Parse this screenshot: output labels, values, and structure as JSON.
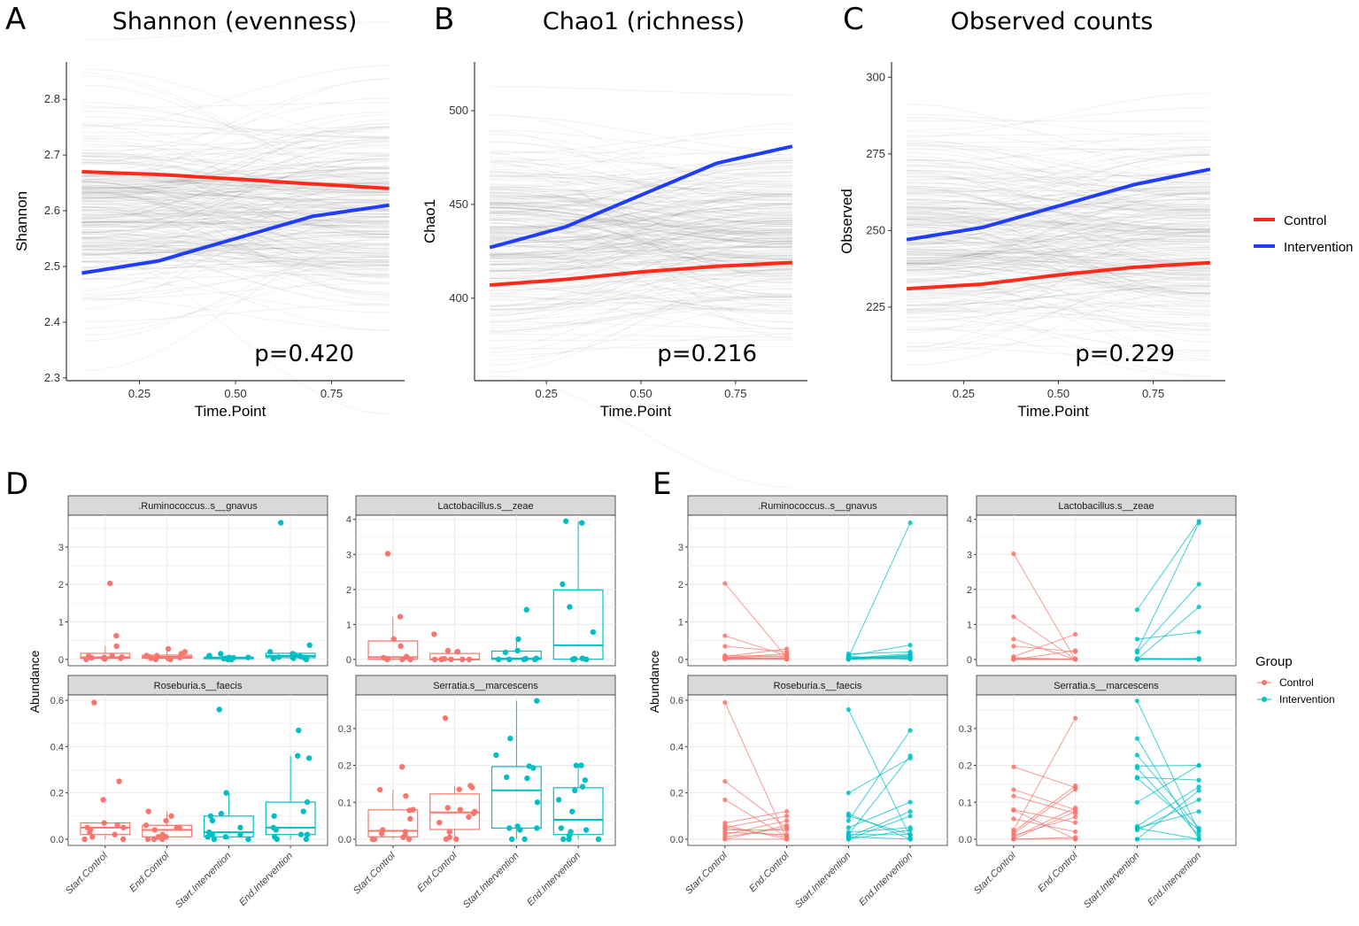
{
  "colors": {
    "control_line": "#ff2a1a",
    "intervention_line": "#1f3cff",
    "control_point": "#f8766d",
    "intervention_point": "#00bfc4",
    "strip": "#d9d9d9",
    "grid": "#ebebeb"
  },
  "legend_top": {
    "items": [
      {
        "label": "Control",
        "color": "#ff2a1a"
      },
      {
        "label": "Intervention",
        "color": "#1f3cff"
      }
    ]
  },
  "legend_bottom": {
    "title": "Group",
    "items": [
      {
        "label": "Control",
        "color": "#f8766d"
      },
      {
        "label": "Intervention",
        "color": "#00bfc4"
      }
    ]
  },
  "chart_data": [
    {
      "panel": "A",
      "type": "line",
      "title": "Shannon (evenness)",
      "xlabel": "Time.Point",
      "ylabel": "Shannon",
      "annotation": "p=0.420",
      "xlim": [
        0.06,
        0.94
      ],
      "ylim": [
        2.295,
        2.867
      ],
      "xticks": [
        "0.25",
        "0.50",
        "0.75"
      ],
      "yticks": [
        "2.3",
        "2.4",
        "2.5",
        "2.6",
        "2.7",
        "2.8"
      ],
      "x": [
        0.1,
        0.3,
        0.5,
        0.7,
        0.9
      ],
      "series": [
        {
          "name": "Control",
          "values": [
            2.67,
            2.665,
            2.657,
            2.648,
            2.64
          ]
        },
        {
          "name": "Intervention",
          "values": [
            2.488,
            2.51,
            2.55,
            2.59,
            2.61
          ]
        }
      ],
      "background": "permutation curves (gray)"
    },
    {
      "panel": "B",
      "type": "line",
      "title": "Chao1 (richness)",
      "xlabel": "Time.Point",
      "ylabel": "Chao1",
      "annotation": "p=0.216",
      "xlim": [
        0.06,
        0.94
      ],
      "ylim": [
        356,
        526
      ],
      "xticks": [
        "0.25",
        "0.50",
        "0.75"
      ],
      "yticks": [
        "400",
        "450",
        "500"
      ],
      "x": [
        0.1,
        0.3,
        0.5,
        0.7,
        0.9
      ],
      "series": [
        {
          "name": "Control",
          "values": [
            407,
            410,
            414,
            417,
            419
          ]
        },
        {
          "name": "Intervention",
          "values": [
            427,
            438,
            455,
            472,
            481
          ]
        }
      ],
      "background": "permutation curves (gray)"
    },
    {
      "panel": "C",
      "type": "line",
      "title": "Observed counts",
      "xlabel": "Time.Point",
      "ylabel": "Observed",
      "annotation": "p=0.229",
      "xlim": [
        0.06,
        0.94
      ],
      "ylim": [
        201,
        305
      ],
      "xticks": [
        "0.25",
        "0.50",
        "0.75"
      ],
      "yticks": [
        "225",
        "250",
        "275",
        "300"
      ],
      "x": [
        0.1,
        0.3,
        0.5,
        0.7,
        0.9
      ],
      "series": [
        {
          "name": "Control",
          "values": [
            231,
            232.5,
            235.5,
            238,
            239.5
          ]
        },
        {
          "name": "Intervention",
          "values": [
            247,
            251,
            258,
            265,
            270
          ]
        }
      ],
      "background": "permutation curves (gray)"
    },
    {
      "panel": "D",
      "type": "box",
      "ylabel": "Abundance",
      "categories": [
        "Start.Control",
        "End.Control",
        "Start.Intervention",
        "End.Intervention"
      ],
      "facets_ref": "facets"
    },
    {
      "panel": "E",
      "type": "line",
      "ylabel": "Abundance",
      "categories": [
        "Start.Control",
        "End.Control",
        "Start.Intervention",
        "End.Intervention"
      ],
      "facets_ref": "facets"
    }
  ],
  "facets": [
    {
      "name": ".Ruminococcus..s__gnavus",
      "ylim": [
        -0.17,
        3.85
      ],
      "yticks": [
        "0",
        "1",
        "2",
        "3"
      ],
      "control": [
        [
          2.03,
          0.05
        ],
        [
          0.63,
          0.1
        ],
        [
          0.35,
          0.2
        ],
        [
          0.08,
          0.28
        ],
        [
          0.05,
          0.15
        ],
        [
          0.03,
          0.0
        ],
        [
          0.02,
          0.05
        ],
        [
          0.0,
          0.02
        ],
        [
          0.1,
          0.08
        ],
        [
          0.06,
          0.0
        ],
        [
          0.04,
          0.1
        ],
        [
          0.01,
          0.03
        ]
      ],
      "intervention": [
        [
          0.05,
          3.65
        ],
        [
          0.1,
          0.38
        ],
        [
          0.15,
          0.2
        ],
        [
          0.02,
          0.1
        ],
        [
          0.0,
          0.05
        ],
        [
          0.03,
          0.15
        ],
        [
          0.08,
          0.0
        ],
        [
          0.01,
          0.03
        ],
        [
          0.05,
          0.08
        ],
        [
          0.0,
          0.12
        ],
        [
          0.02,
          0.02
        ],
        [
          0.04,
          0.06
        ]
      ]
    },
    {
      "name": "Lactobacillus.s__zeae",
      "ylim": [
        -0.18,
        4.12
      ],
      "yticks": [
        "0",
        "1",
        "2",
        "3",
        "4"
      ],
      "control": [
        [
          3.02,
          0.0
        ],
        [
          1.22,
          0.0
        ],
        [
          0.58,
          0.0
        ],
        [
          0.38,
          0.22
        ],
        [
          0.08,
          0.72
        ],
        [
          0.0,
          0.25
        ],
        [
          0.0,
          0.0
        ],
        [
          0.05,
          0.0
        ],
        [
          0.0,
          0.02
        ],
        [
          0.02,
          0.0
        ]
      ],
      "intervention": [
        [
          1.42,
          3.95
        ],
        [
          0.58,
          0.78
        ],
        [
          0.25,
          3.9
        ],
        [
          0.2,
          2.15
        ],
        [
          0.0,
          1.5
        ],
        [
          0.0,
          0.0
        ],
        [
          0.0,
          0.03
        ],
        [
          0.02,
          0.0
        ],
        [
          0.0,
          0.0
        ],
        [
          0.03,
          0.02
        ]
      ]
    },
    {
      "name": "Roseburia.s__faecis",
      "ylim": [
        -0.027,
        0.623
      ],
      "yticks": [
        "0.0",
        "0.2",
        "0.4",
        "0.6"
      ],
      "control": [
        [
          0.59,
          0.0
        ],
        [
          0.25,
          0.05
        ],
        [
          0.17,
          0.01
        ],
        [
          0.07,
          0.12
        ],
        [
          0.06,
          0.0
        ],
        [
          0.05,
          0.1
        ],
        [
          0.04,
          0.04
        ],
        [
          0.02,
          0.08
        ],
        [
          0.01,
          0.05
        ],
        [
          0.0,
          0.0
        ],
        [
          0.03,
          0.02
        ],
        [
          0.05,
          0.01
        ],
        [
          0.0,
          0.06
        ]
      ],
      "intervention": [
        [
          0.56,
          0.01
        ],
        [
          0.2,
          0.35
        ],
        [
          0.11,
          0.0
        ],
        [
          0.1,
          0.02
        ],
        [
          0.08,
          0.47
        ],
        [
          0.05,
          0.16
        ],
        [
          0.02,
          0.36
        ],
        [
          0.01,
          0.12
        ],
        [
          0.0,
          0.1
        ],
        [
          0.03,
          0.05
        ],
        [
          0.0,
          0.04
        ],
        [
          0.01,
          0.0
        ],
        [
          0.02,
          0.02
        ]
      ]
    },
    {
      "name": "Serratia.s__marcescens",
      "ylim": [
        -0.017,
        0.391
      ],
      "yticks": [
        "0.0",
        "0.1",
        "0.2",
        "0.3"
      ],
      "control": [
        [
          0.196,
          0.14
        ],
        [
          0.134,
          0.08
        ],
        [
          0.117,
          0.07
        ],
        [
          0.08,
          0.045
        ],
        [
          0.078,
          0.0
        ],
        [
          0.055,
          0.02
        ],
        [
          0.025,
          0.328
        ],
        [
          0.02,
          0.145
        ],
        [
          0.015,
          0.135
        ],
        [
          0.01,
          0.06
        ],
        [
          0.0,
          0.075
        ],
        [
          0.0,
          0.005
        ],
        [
          0.0,
          0.0
        ],
        [
          0.005,
          0.085
        ]
      ],
      "intervention": [
        [
          0.375,
          0.02
        ],
        [
          0.273,
          0.0
        ],
        [
          0.228,
          0.03
        ],
        [
          0.198,
          0.2
        ],
        [
          0.193,
          0.01
        ],
        [
          0.168,
          0.16
        ],
        [
          0.165,
          0.025
        ],
        [
          0.1,
          0.2
        ],
        [
          0.035,
          0.142
        ],
        [
          0.03,
          0.075
        ],
        [
          0.025,
          0.107
        ],
        [
          0.0,
          0.132
        ],
        [
          0.0,
          0.0
        ],
        [
          0.03,
          0.0
        ]
      ]
    }
  ],
  "panel_letters": [
    "A",
    "B",
    "C",
    "D",
    "E"
  ]
}
